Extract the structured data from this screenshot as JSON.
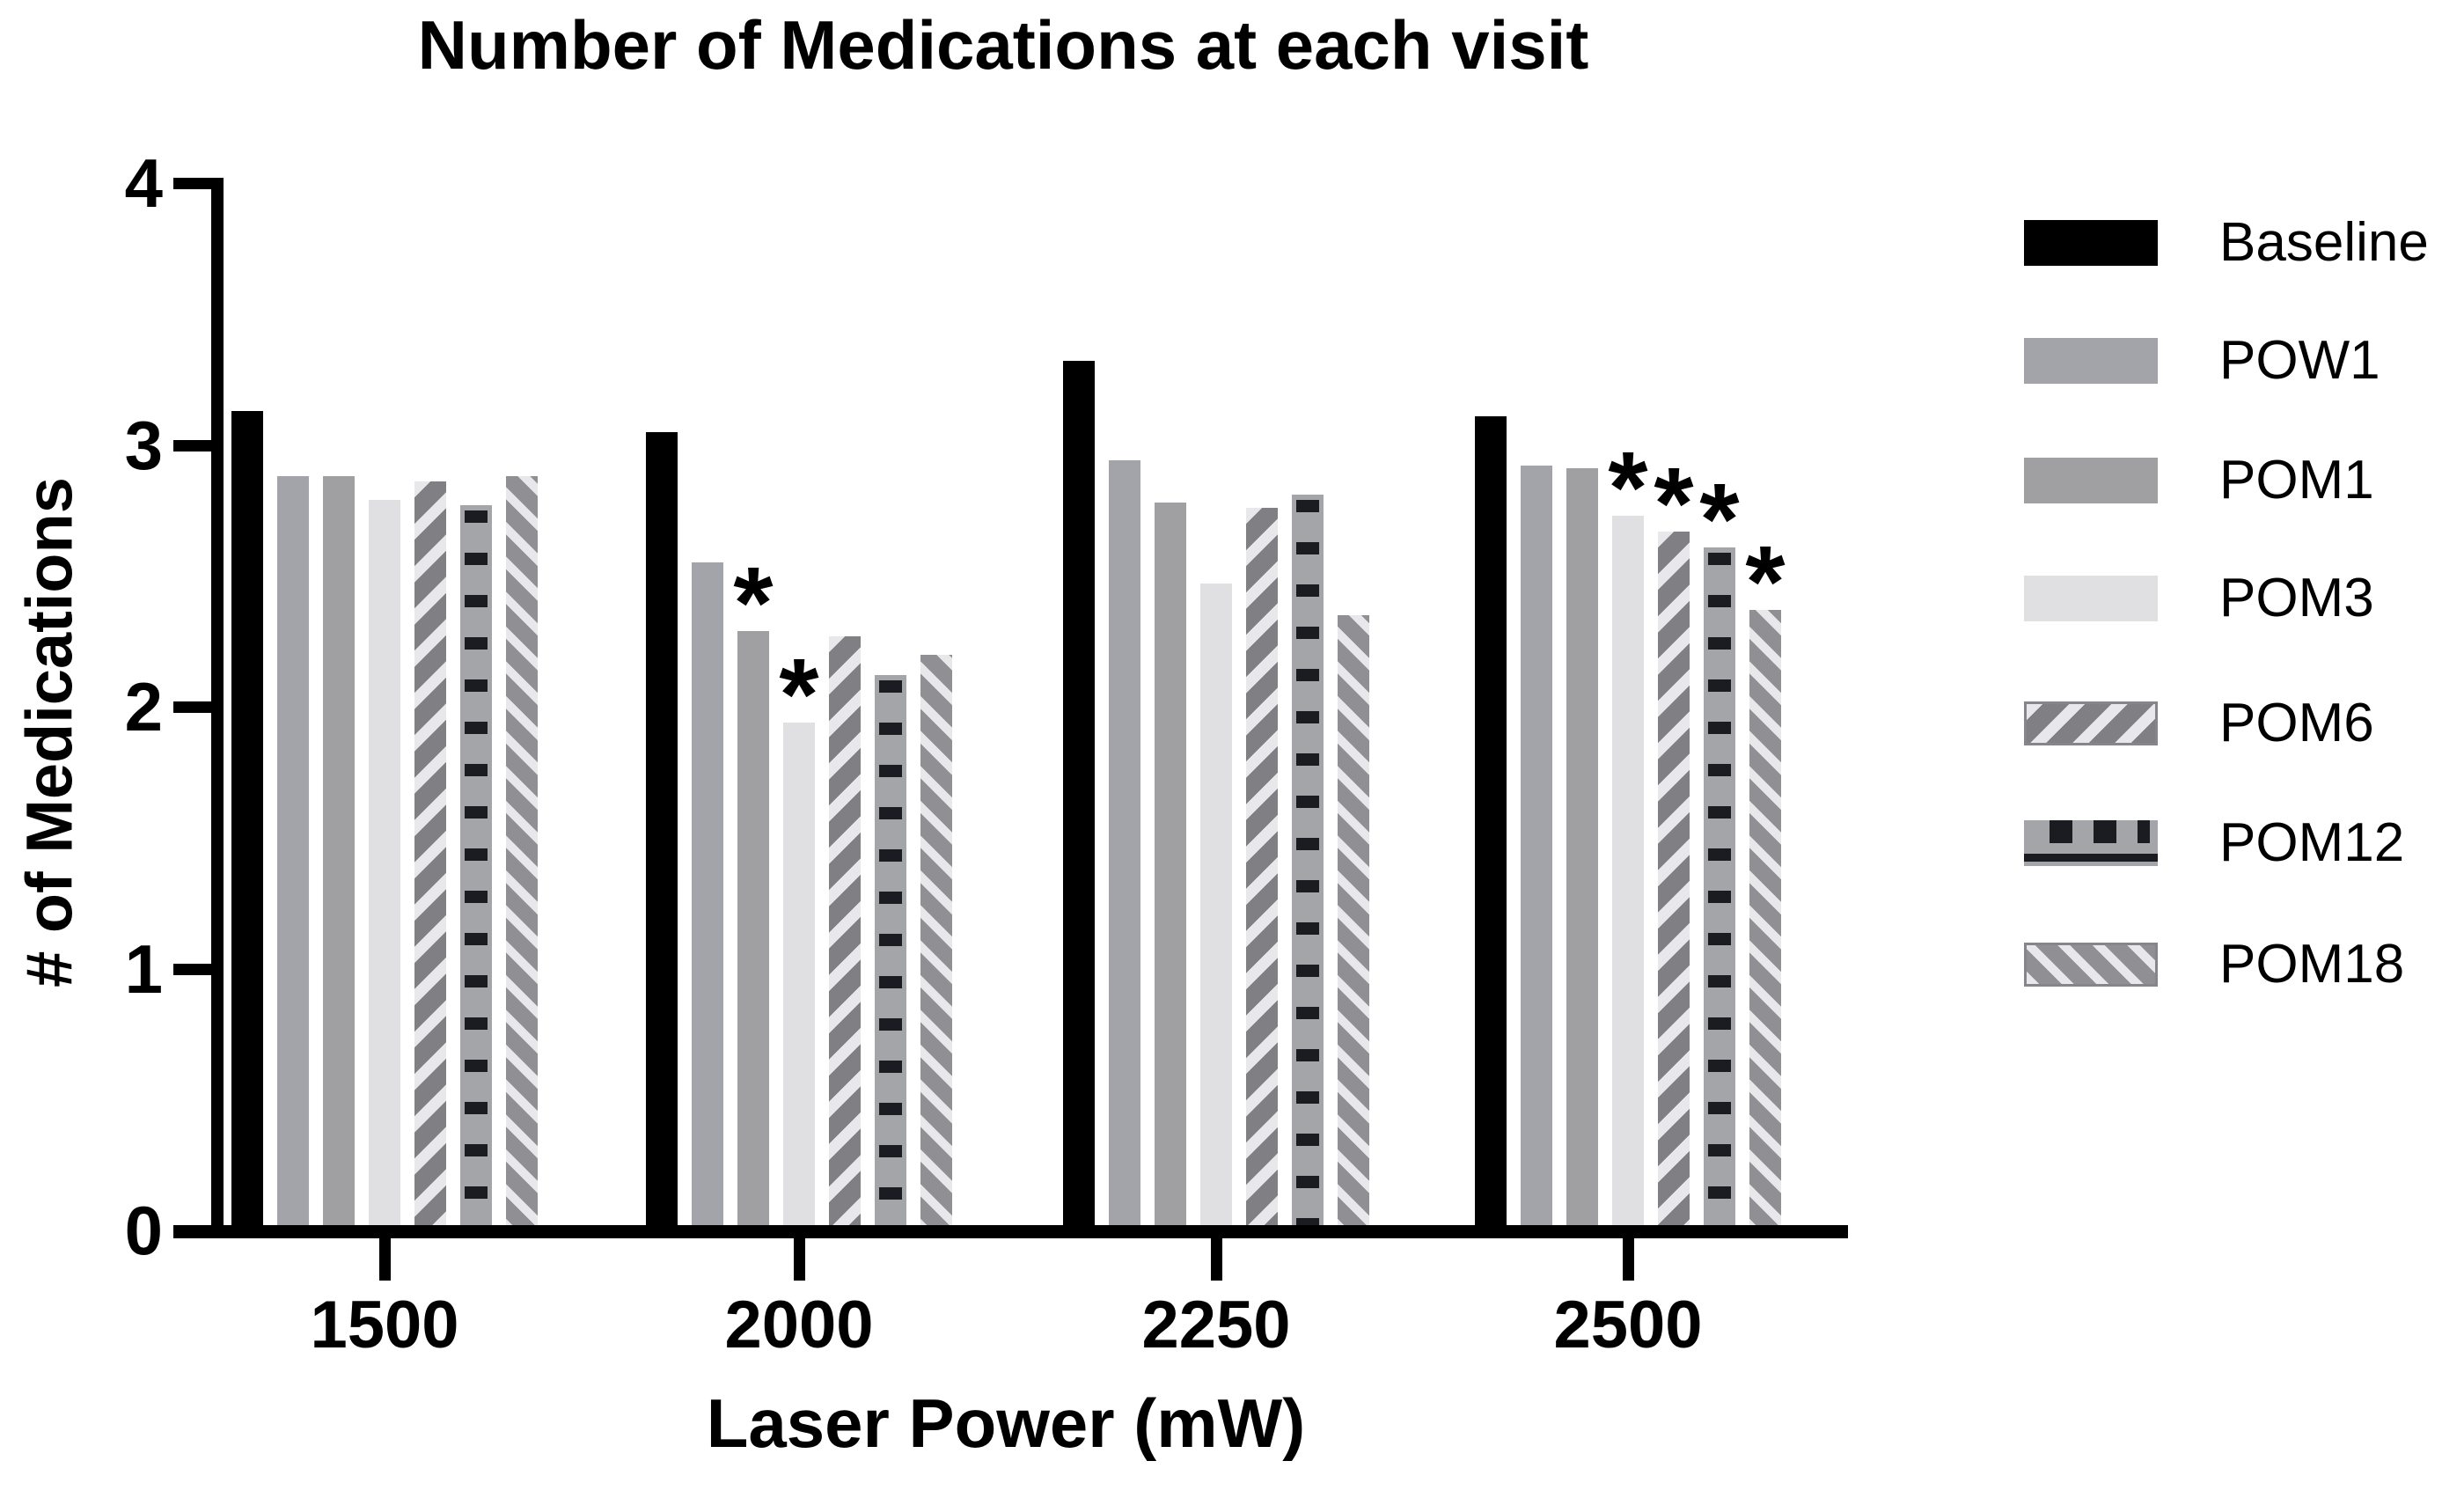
{
  "chart_data": {
    "type": "bar",
    "title": "Number of Medications at each visit",
    "xlabel": "Laser Power (mW)",
    "ylabel": "# of Medications",
    "ylim": [
      0,
      4
    ],
    "yticks": [
      0,
      1,
      2,
      3,
      4
    ],
    "categories": [
      "1500",
      "2000",
      "2250",
      "2500"
    ],
    "series": [
      {
        "name": "Baseline",
        "pattern": "solid",
        "fill": "#000000",
        "accent": "#000000",
        "values": [
          3.13,
          3.05,
          3.32,
          3.11
        ]
      },
      {
        "name": "POW1",
        "pattern": "solid",
        "fill": "#a3a4a9",
        "accent": "#a3a4a9",
        "values": [
          2.88,
          2.55,
          2.94,
          2.92
        ]
      },
      {
        "name": "POM1",
        "pattern": "solid",
        "fill": "#a0a0a3",
        "accent": "#a0a0a3",
        "values": [
          2.88,
          2.29,
          2.78,
          2.91
        ]
      },
      {
        "name": "POM3",
        "pattern": "solid",
        "fill": "#e0e0e2",
        "accent": "#e0e0e2",
        "values": [
          2.79,
          1.94,
          2.47,
          2.73
        ]
      },
      {
        "name": "POM6",
        "pattern": "stripes-up",
        "fill": "#808084",
        "accent": "#e8e8ea",
        "values": [
          2.86,
          2.27,
          2.76,
          2.67
        ]
      },
      {
        "name": "POM12",
        "pattern": "dashes",
        "fill": "#a4a5a9",
        "accent": "#1b1b22",
        "values": [
          2.77,
          2.12,
          2.81,
          2.61
        ]
      },
      {
        "name": "POM18",
        "pattern": "stripes-down",
        "fill": "#909094",
        "accent": "#e8e8ea",
        "values": [
          2.88,
          2.2,
          2.35,
          2.37
        ]
      }
    ],
    "legend": [
      "Baseline",
      "POW1",
      "POM1",
      "POM3",
      "POM6",
      "POM12",
      "POM18"
    ],
    "legend_position": "right",
    "grid": false,
    "significance_marker": "*",
    "significance": [
      {
        "category": "2000",
        "series": "POM1"
      },
      {
        "category": "2000",
        "series": "POM3"
      },
      {
        "category": "2500",
        "series": "POM3"
      },
      {
        "category": "2500",
        "series": "POM6"
      },
      {
        "category": "2500",
        "series": "POM12"
      },
      {
        "category": "2500",
        "series": "POM18"
      }
    ]
  }
}
